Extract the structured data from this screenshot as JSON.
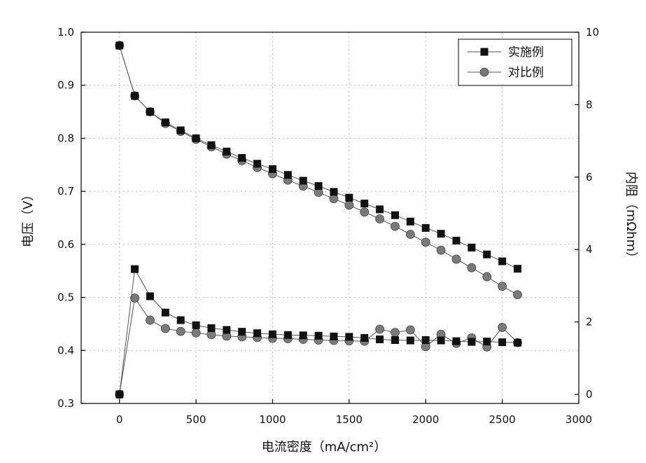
{
  "chart_data": {
    "type": "line",
    "xlabel": "电流密度（mA/cm²）",
    "ylabel_left": "电压（V）",
    "ylabel_right": "内阻（mΩhm）",
    "xlim": [
      -250,
      3000
    ],
    "ylim_left": [
      0.3,
      1.0
    ],
    "ylim_right": [
      -0.25,
      10
    ],
    "x_ticks": [
      0,
      500,
      1000,
      1500,
      2000,
      2500,
      3000
    ],
    "y_left_ticks": [
      0.3,
      0.4,
      0.5,
      0.6,
      0.7,
      0.8,
      0.9,
      1.0
    ],
    "y_left_tick_labels": [
      "0.3",
      "0.4",
      "0.5",
      "0.6",
      "0.7",
      "0.8",
      "0.9",
      "1.0"
    ],
    "y_right_ticks": [
      0,
      2,
      4,
      6,
      8,
      10
    ],
    "grid": true,
    "legend_position": "top-right",
    "legend": [
      {
        "name": "实施例",
        "marker": "square",
        "color": "#111111"
      },
      {
        "name": "对比例",
        "marker": "circle",
        "color": "#777777"
      }
    ],
    "voltage_series": [
      {
        "name": "实施例",
        "axis": "left",
        "x": [
          0,
          100,
          200,
          300,
          400,
          500,
          600,
          700,
          800,
          900,
          1000,
          1100,
          1200,
          1300,
          1400,
          1500,
          1600,
          1700,
          1800,
          1900,
          2000,
          2100,
          2200,
          2300,
          2400,
          2500,
          2600
        ],
        "y": [
          0.975,
          0.88,
          0.85,
          0.83,
          0.815,
          0.8,
          0.787,
          0.775,
          0.763,
          0.752,
          0.742,
          0.731,
          0.72,
          0.71,
          0.699,
          0.688,
          0.677,
          0.666,
          0.655,
          0.643,
          0.631,
          0.62,
          0.607,
          0.594,
          0.581,
          0.568,
          0.554
        ]
      },
      {
        "name": "对比例",
        "axis": "left",
        "x": [
          0,
          100,
          200,
          300,
          400,
          500,
          600,
          700,
          800,
          900,
          1000,
          1100,
          1200,
          1300,
          1400,
          1500,
          1600,
          1700,
          1800,
          1900,
          2000,
          2100,
          2200,
          2300,
          2400,
          2500,
          2600
        ],
        "y": [
          0.975,
          0.88,
          0.85,
          0.828,
          0.813,
          0.798,
          0.784,
          0.77,
          0.758,
          0.745,
          0.733,
          0.721,
          0.71,
          0.698,
          0.686,
          0.674,
          0.661,
          0.648,
          0.634,
          0.619,
          0.604,
          0.589,
          0.572,
          0.556,
          0.539,
          0.521,
          0.505
        ]
      }
    ],
    "resistance_series": [
      {
        "name": "实施例",
        "axis": "right",
        "x": [
          0,
          100,
          200,
          300,
          400,
          500,
          600,
          700,
          800,
          900,
          1000,
          1100,
          1200,
          1300,
          1400,
          1500,
          1600,
          1700,
          1800,
          1900,
          2000,
          2100,
          2200,
          2300,
          2400,
          2500,
          2600
        ],
        "y": [
          0.0,
          3.46,
          2.71,
          2.26,
          2.05,
          1.91,
          1.83,
          1.78,
          1.73,
          1.69,
          1.66,
          1.64,
          1.63,
          1.62,
          1.6,
          1.59,
          1.56,
          1.52,
          1.5,
          1.49,
          1.5,
          1.49,
          1.47,
          1.45,
          1.46,
          1.44,
          1.43
        ]
      },
      {
        "name": "对比例",
        "axis": "right",
        "x": [
          0,
          100,
          200,
          300,
          400,
          500,
          600,
          700,
          800,
          900,
          1000,
          1100,
          1200,
          1300,
          1400,
          1500,
          1600,
          1700,
          1800,
          1900,
          2000,
          2100,
          2200,
          2300,
          2400,
          2500,
          2600
        ],
        "y": [
          0.0,
          2.66,
          2.05,
          1.82,
          1.74,
          1.7,
          1.65,
          1.61,
          1.59,
          1.57,
          1.55,
          1.54,
          1.52,
          1.5,
          1.49,
          1.48,
          1.47,
          1.8,
          1.71,
          1.78,
          1.32,
          1.66,
          1.41,
          1.56,
          1.31,
          1.85,
          1.43
        ]
      }
    ]
  }
}
